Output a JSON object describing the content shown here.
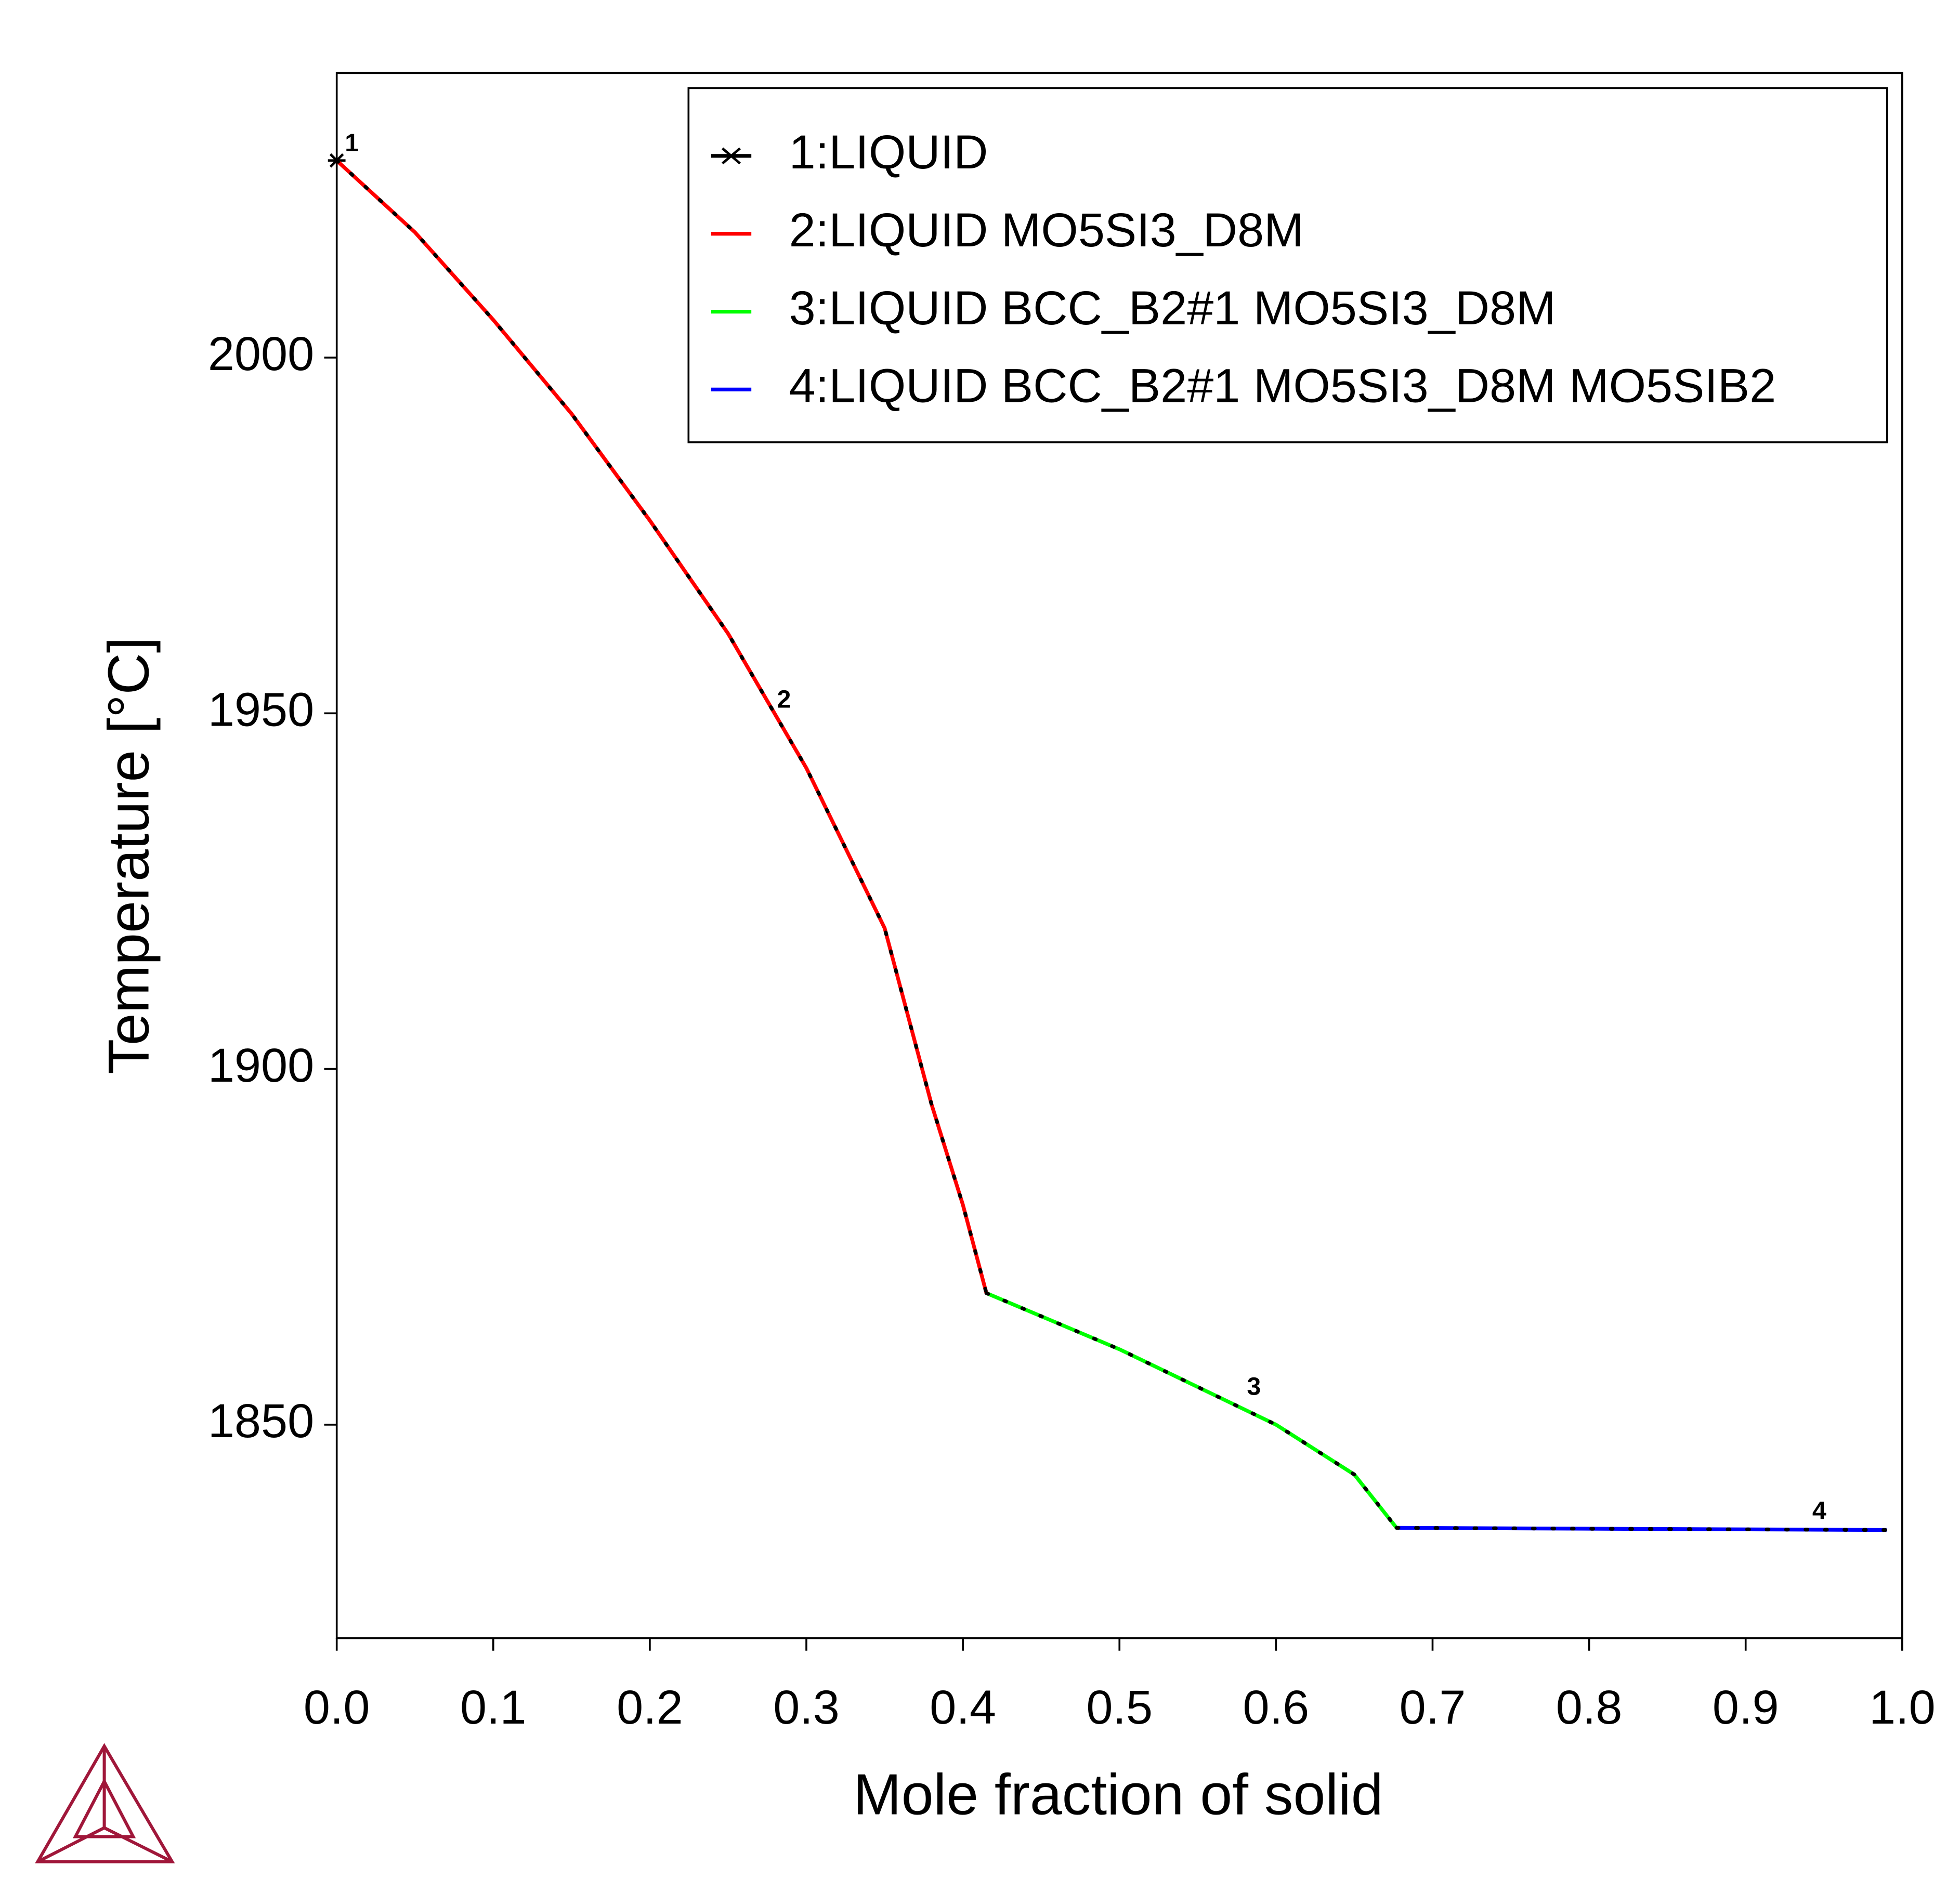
{
  "chart_data": {
    "type": "line",
    "xlabel": "Mole fraction of solid",
    "ylabel": "Temperature [°C]",
    "xlim": [
      0,
      1
    ],
    "ylim": [
      1820,
      2040
    ],
    "xticks": [
      {
        "value": 0,
        "label": "0.0"
      },
      0.1,
      0.2,
      0.3,
      0.4,
      0.5,
      0.6,
      0.7,
      0.8,
      0.9,
      {
        "value": 1,
        "label": "1.0"
      }
    ],
    "yticks": [
      1850,
      1900,
      1950,
      2000
    ],
    "legend": "upper right",
    "series": [
      {
        "name": "1:LIQUID",
        "color": "#000000",
        "marker": "star",
        "x": [
          0
        ],
        "values": [
          2027.7
        ]
      },
      {
        "name": "2:LIQUID MO5SI3_D8M",
        "color": "#ff0000",
        "x": [
          0,
          0.05,
          0.1,
          0.15,
          0.2,
          0.25,
          0.3,
          0.35,
          0.38,
          0.4,
          0.415
        ],
        "values": [
          2027.7,
          2017.6,
          2005.3,
          1992.1,
          1977.1,
          1961.2,
          1942.3,
          1919.8,
          1895,
          1880.9,
          1868.5
        ]
      },
      {
        "name": "3:LIQUID BCC_B2#1 MO5SI3_D8M",
        "color": "#00ff00",
        "x": [
          0.415,
          0.5,
          0.6,
          0.65,
          0.677
        ],
        "values": [
          1868.5,
          1860.6,
          1850,
          1843,
          1835.5
        ]
      },
      {
        "name": "4:LIQUID BCC_B2#1 MO5SI3_D8M MO5SIB2",
        "color": "#0000ff",
        "x": [
          0.677,
          0.99
        ],
        "values": [
          1835.5,
          1835.2
        ]
      }
    ],
    "annotations": [
      "1",
      "2",
      "3",
      "4"
    ]
  }
}
